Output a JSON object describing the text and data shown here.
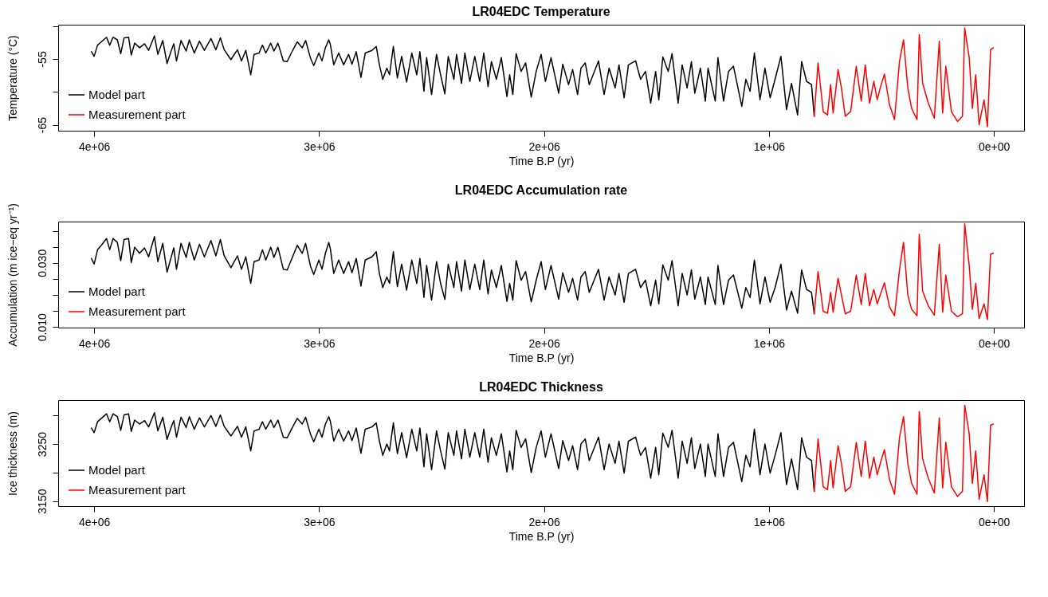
{
  "chart_data": [
    {
      "type": "line",
      "title": "LR04EDC Temperature",
      "xlabel": "Time B.P (yr)",
      "ylabel": "Temperature (°C)",
      "xlim": [
        4160000,
        -134000
      ],
      "xticks": [
        {
          "value": 4000000,
          "label": "4e+06"
        },
        {
          "value": 3000000,
          "label": "3e+06"
        },
        {
          "value": 2000000,
          "label": "2e+06"
        },
        {
          "value": 1000000,
          "label": "1e+06"
        },
        {
          "value": 0,
          "label": "0e+00"
        }
      ],
      "ylim": [
        -65.9,
        -49.8
      ],
      "yticks": [
        -65,
        {
          "value": -60,
          "label": null
        },
        -55,
        {
          "value": -50,
          "label": null
        }
      ],
      "legend": "bottom left",
      "series": [
        {
          "name": "Model part",
          "color": "#000000",
          "x": [
            4012000,
            4000000,
            3985000,
            3968000,
            3945000,
            3931000,
            3916000,
            3897000,
            3882000,
            3867000,
            3847000,
            3835000,
            3820000,
            3798000,
            3776000,
            3758000,
            3732000,
            3717000,
            3695000,
            3676000,
            3658000,
            3646000,
            3634000,
            3614000,
            3591000,
            3577000,
            3555000,
            3532000,
            3510000,
            3481000,
            3459000,
            3439000,
            3422000,
            3392000,
            3363000,
            3345000,
            3326000,
            3304000,
            3289000,
            3267000,
            3252000,
            3237000,
            3215000,
            3201000,
            3183000,
            3159000,
            3142000,
            3119000,
            3097000,
            3075000,
            3060000,
            3038000,
            3024000,
            3001000,
            2987000,
            2972000,
            2957000,
            2950000,
            2935000,
            2913000,
            2891000,
            2869000,
            2854000,
            2835000,
            2814000,
            2795000,
            2765000,
            2746000,
            2732000,
            2717000,
            2699000,
            2687000,
            2670000,
            2652000,
            2633000,
            2611000,
            2588000,
            2566000,
            2552000,
            2534000,
            2522000,
            2500000,
            2478000,
            2460000,
            2441000,
            2426000,
            2401000,
            2389000,
            2367000,
            2352000,
            2330000,
            2308000,
            2286000,
            2268000,
            2249000,
            2234000,
            2212000,
            2190000,
            2165000,
            2153000,
            2139000,
            2124000,
            2102000,
            2082000,
            2057000,
            2035000,
            2013000,
            1994000,
            1969000,
            1935000,
            1917000,
            1891000,
            1873000,
            1851000,
            1836000,
            1817000,
            1799000,
            1758000,
            1733000,
            1711000,
            1684000,
            1667000,
            1644000,
            1625000,
            1593000,
            1571000,
            1549000,
            1526000,
            1504000,
            1490000,
            1472000,
            1448000,
            1431000,
            1404000,
            1386000,
            1364000,
            1345000,
            1330000,
            1305000,
            1283000,
            1271000,
            1239000,
            1227000,
            1202000,
            1180000,
            1158000,
            1121000,
            1103000,
            1084000,
            1065000,
            1040000,
            1018000,
            995000,
            973000,
            947000,
            922000,
            900000,
            873000,
            855000,
            833000,
            811000,
            799000
          ],
          "values": [
            -53.9,
            -54.6,
            -52.9,
            -52.4,
            -51.7,
            -52.9,
            -51.7,
            -52.1,
            -54.2,
            -51.8,
            -51.7,
            -54.4,
            -52.6,
            -53.3,
            -52.7,
            -53.7,
            -51.5,
            -54.3,
            -52.2,
            -55.7,
            -53.8,
            -52.7,
            -55.3,
            -52.2,
            -53.8,
            -52.1,
            -54.1,
            -52.3,
            -53.7,
            -51.9,
            -53.6,
            -51.8,
            -53.6,
            -55.1,
            -53.6,
            -55.3,
            -53.7,
            -57.4,
            -54.3,
            -54.1,
            -52.9,
            -54.1,
            -52.6,
            -53.8,
            -52.6,
            -55.3,
            -55.4,
            -53.8,
            -52.4,
            -53.3,
            -52.2,
            -54.9,
            -56.0,
            -54.1,
            -55.3,
            -53.3,
            -52.1,
            -52.8,
            -55.9,
            -54.1,
            -55.9,
            -54.3,
            -55.8,
            -53.9,
            -57.8,
            -54.1,
            -53.7,
            -53.1,
            -55.9,
            -58.1,
            -56.4,
            -57.4,
            -53.1,
            -57.9,
            -54.6,
            -58.5,
            -54.1,
            -57.4,
            -53.9,
            -59.9,
            -54.8,
            -60.4,
            -54.3,
            -57.4,
            -60.3,
            -54.6,
            -58.1,
            -54.3,
            -58.7,
            -54.1,
            -58.4,
            -54.6,
            -58.4,
            -54.1,
            -59.2,
            -55.4,
            -58.1,
            -54.8,
            -60.7,
            -57.4,
            -60.4,
            -54.2,
            -56.9,
            -55.6,
            -60.8,
            -56.9,
            -54.3,
            -58.4,
            -54.8,
            -60.2,
            -55.8,
            -58.9,
            -56.6,
            -60.4,
            -56.4,
            -55.6,
            -58.9,
            -55.3,
            -60.4,
            -56.4,
            -59.4,
            -55.9,
            -60.9,
            -55.9,
            -55.3,
            -58.1,
            -56.9,
            -61.7,
            -56.9,
            -61.2,
            -54.7,
            -56.9,
            -54.2,
            -61.7,
            -55.9,
            -59.4,
            -55.4,
            -60.2,
            -56.4,
            -61.4,
            -56.4,
            -61.4,
            -54.8,
            -61.4,
            -56.9,
            -56.1,
            -62.2,
            -58.1,
            -59.9,
            -54.1,
            -61.2,
            -56.4,
            -60.9,
            -58.1,
            -54.6,
            -62.7,
            -58.7,
            -63.5,
            -55.4,
            -58.4,
            -58.9,
            -63.7
          ]
        },
        {
          "name": "Measurement part",
          "color": "#ff0000",
          "x": [
            799000,
            782000,
            759000,
            740000,
            726000,
            715000,
            693000,
            678000,
            661000,
            637000,
            612000,
            590000,
            572000,
            553000,
            534000,
            519000,
            504000,
            487000,
            464000,
            442000,
            420000,
            402000,
            383000,
            366000,
            342000,
            332000,
            317000,
            292000,
            265000,
            243000,
            228000,
            214000,
            189000,
            162000,
            140000,
            130000,
            110000,
            96000,
            81000,
            66000,
            44000,
            29000,
            15000,
            3000
          ],
          "values": [
            -63.7,
            -55.6,
            -63.0,
            -63.5,
            -58.9,
            -63.2,
            -56.6,
            -59.4,
            -63.7,
            -63.0,
            -56.1,
            -61.4,
            -55.9,
            -61.7,
            -58.4,
            -61.2,
            -59.2,
            -57.3,
            -62.0,
            -64.2,
            -55.4,
            -52.1,
            -59.4,
            -62.5,
            -64.2,
            -51.3,
            -58.7,
            -61.7,
            -64.0,
            -52.3,
            -63.2,
            -56.1,
            -63.0,
            -64.5,
            -63.7,
            -50.3,
            -54.8,
            -62.5,
            -57.4,
            -65.0,
            -61.2,
            -65.3,
            -53.6,
            -53.3
          ]
        }
      ]
    },
    {
      "type": "line",
      "title": "LR04EDC Accumulation rate",
      "xlabel": "Time B.P (yr)",
      "ylabel": "Accumulation (m ice−eq yr⁻¹)",
      "xlim": [
        4160000,
        -134000
      ],
      "xticks": [
        {
          "value": 4000000,
          "label": "4e+06"
        },
        {
          "value": 3000000,
          "label": "3e+06"
        },
        {
          "value": 2000000,
          "label": "2e+06"
        },
        {
          "value": 1000000,
          "label": "1e+06"
        },
        {
          "value": 0,
          "label": "0e+00"
        }
      ],
      "ylim": [
        0.0098,
        0.0429
      ],
      "yticks": [
        {
          "value": 0.01,
          "label": "0.010"
        },
        {
          "value": 0.015,
          "label": null
        },
        {
          "value": 0.02,
          "label": null
        },
        {
          "value": 0.025,
          "label": null
        },
        {
          "value": 0.03,
          "label": "0.030"
        },
        {
          "value": 0.035,
          "label": null
        },
        {
          "value": 0.04,
          "label": null
        }
      ],
      "legend": "bottom left",
      "series": [
        {
          "name": "Model part",
          "color": "#000000",
          "x": [
            4012000,
            4000000,
            3985000,
            3968000,
            3945000,
            3931000,
            3916000,
            3897000,
            3882000,
            3867000,
            3847000,
            3835000,
            3820000,
            3798000,
            3776000,
            3758000,
            3732000,
            3717000,
            3695000,
            3676000,
            3658000,
            3646000,
            3634000,
            3614000,
            3591000,
            3577000,
            3555000,
            3532000,
            3510000,
            3481000,
            3459000,
            3439000,
            3422000,
            3392000,
            3363000,
            3345000,
            3326000,
            3304000,
            3289000,
            3267000,
            3252000,
            3237000,
            3215000,
            3201000,
            3183000,
            3159000,
            3142000,
            3119000,
            3097000,
            3075000,
            3060000,
            3038000,
            3024000,
            3001000,
            2987000,
            2972000,
            2957000,
            2950000,
            2935000,
            2913000,
            2891000,
            2869000,
            2854000,
            2835000,
            2814000,
            2795000,
            2765000,
            2746000,
            2732000,
            2717000,
            2699000,
            2687000,
            2670000,
            2652000,
            2633000,
            2611000,
            2588000,
            2566000,
            2552000,
            2534000,
            2522000,
            2500000,
            2478000,
            2460000,
            2441000,
            2426000,
            2401000,
            2389000,
            2367000,
            2352000,
            2330000,
            2308000,
            2286000,
            2268000,
            2249000,
            2234000,
            2212000,
            2190000,
            2165000,
            2153000,
            2139000,
            2124000,
            2102000,
            2082000,
            2057000,
            2035000,
            2013000,
            1994000,
            1969000,
            1935000,
            1917000,
            1891000,
            1873000,
            1851000,
            1836000,
            1817000,
            1799000,
            1758000,
            1733000,
            1711000,
            1684000,
            1667000,
            1644000,
            1625000,
            1593000,
            1571000,
            1549000,
            1526000,
            1504000,
            1490000,
            1472000,
            1448000,
            1431000,
            1404000,
            1386000,
            1364000,
            1345000,
            1330000,
            1305000,
            1283000,
            1271000,
            1239000,
            1227000,
            1202000,
            1180000,
            1158000,
            1121000,
            1103000,
            1084000,
            1065000,
            1040000,
            1018000,
            995000,
            973000,
            947000,
            922000,
            900000,
            873000,
            855000,
            833000,
            811000,
            799000
          ],
          "values": [
            0.0314,
            0.0296,
            0.0341,
            0.0355,
            0.0376,
            0.0341,
            0.0376,
            0.0364,
            0.0307,
            0.0373,
            0.0376,
            0.0301,
            0.0349,
            0.033,
            0.0347,
            0.0319,
            0.0382,
            0.0304,
            0.0361,
            0.0271,
            0.0317,
            0.0347,
            0.028,
            0.0361,
            0.0317,
            0.0364,
            0.0309,
            0.0358,
            0.0319,
            0.037,
            0.0322,
            0.0373,
            0.0322,
            0.0285,
            0.0322,
            0.028,
            0.0319,
            0.0236,
            0.0304,
            0.0309,
            0.0341,
            0.0309,
            0.0349,
            0.0317,
            0.0349,
            0.028,
            0.0278,
            0.0317,
            0.0355,
            0.033,
            0.0361,
            0.0289,
            0.0264,
            0.0309,
            0.028,
            0.033,
            0.0364,
            0.0344,
            0.0267,
            0.0309,
            0.0267,
            0.0304,
            0.0269,
            0.0314,
            0.0228,
            0.0309,
            0.0319,
            0.0335,
            0.0267,
            0.0223,
            0.0256,
            0.0236,
            0.0335,
            0.0226,
            0.0296,
            0.0215,
            0.0309,
            0.0236,
            0.0314,
            0.0192,
            0.0292,
            0.0184,
            0.0304,
            0.0236,
            0.0186,
            0.0296,
            0.0223,
            0.0304,
            0.0212,
            0.0309,
            0.0217,
            0.0296,
            0.0217,
            0.0309,
            0.0203,
            0.0278,
            0.0223,
            0.0292,
            0.018,
            0.0236,
            0.0184,
            0.0307,
            0.0246,
            0.0273,
            0.0178,
            0.0246,
            0.0304,
            0.0217,
            0.0292,
            0.0187,
            0.0269,
            0.0208,
            0.0252,
            0.0184,
            0.0256,
            0.0273,
            0.0208,
            0.028,
            0.0184,
            0.0256,
            0.02,
            0.0267,
            0.0177,
            0.0267,
            0.028,
            0.0223,
            0.0246,
            0.0166,
            0.0246,
            0.0172,
            0.0294,
            0.0246,
            0.0307,
            0.0166,
            0.0267,
            0.02,
            0.0278,
            0.0187,
            0.0256,
            0.017,
            0.0256,
            0.017,
            0.0292,
            0.017,
            0.0246,
            0.0262,
            0.0159,
            0.0223,
            0.0192,
            0.0309,
            0.0172,
            0.0256,
            0.0177,
            0.0223,
            0.0296,
            0.0153,
            0.0212,
            0.0143,
            0.0278,
            0.0217,
            0.0208,
            0.0141
          ]
        },
        {
          "name": "Measurement part",
          "color": "#ff0000",
          "x": [
            799000,
            782000,
            759000,
            740000,
            726000,
            715000,
            693000,
            678000,
            661000,
            637000,
            612000,
            590000,
            572000,
            553000,
            534000,
            519000,
            504000,
            487000,
            464000,
            442000,
            420000,
            402000,
            383000,
            366000,
            342000,
            332000,
            317000,
            292000,
            265000,
            243000,
            228000,
            214000,
            189000,
            162000,
            140000,
            130000,
            110000,
            96000,
            81000,
            66000,
            44000,
            29000,
            15000,
            3000
          ],
          "values": [
            0.0141,
            0.0273,
            0.0149,
            0.0143,
            0.0208,
            0.0146,
            0.0252,
            0.02,
            0.0141,
            0.0149,
            0.0262,
            0.017,
            0.0267,
            0.0166,
            0.0217,
            0.0172,
            0.0203,
            0.0238,
            0.0162,
            0.0135,
            0.0278,
            0.0364,
            0.02,
            0.0155,
            0.0135,
            0.0389,
            0.0212,
            0.0166,
            0.0137,
            0.0358,
            0.0146,
            0.0262,
            0.0149,
            0.0132,
            0.0141,
            0.0422,
            0.0292,
            0.0155,
            0.0236,
            0.0126,
            0.0172,
            0.0123,
            0.0327,
            0.033
          ]
        }
      ]
    },
    {
      "type": "line",
      "title": "LR04EDC Thickness",
      "xlabel": "Time B.P (yr)",
      "ylabel": "Ice thickness (m)",
      "xlim": [
        4160000,
        -134000
      ],
      "xticks": [
        {
          "value": 4000000,
          "label": "4e+06"
        },
        {
          "value": 3000000,
          "label": "3e+06"
        },
        {
          "value": 2000000,
          "label": "2e+06"
        },
        {
          "value": 1000000,
          "label": "1e+06"
        },
        {
          "value": 0,
          "label": "0e+00"
        }
      ],
      "ylim": [
        3141,
        3327
      ],
      "yticks": [
        3150,
        {
          "value": 3200,
          "label": null
        },
        3250,
        {
          "value": 3300,
          "label": null
        }
      ],
      "legend": "bottom left",
      "series": [
        {
          "name": "Model part",
          "color": "#000000",
          "x": [
            4012000,
            4000000,
            3985000,
            3968000,
            3945000,
            3931000,
            3916000,
            3897000,
            3882000,
            3867000,
            3847000,
            3835000,
            3820000,
            3798000,
            3776000,
            3758000,
            3732000,
            3717000,
            3695000,
            3676000,
            3658000,
            3646000,
            3634000,
            3614000,
            3591000,
            3577000,
            3555000,
            3532000,
            3510000,
            3481000,
            3459000,
            3439000,
            3422000,
            3392000,
            3363000,
            3345000,
            3326000,
            3304000,
            3289000,
            3267000,
            3252000,
            3237000,
            3215000,
            3201000,
            3183000,
            3159000,
            3142000,
            3119000,
            3097000,
            3075000,
            3060000,
            3038000,
            3024000,
            3001000,
            2987000,
            2972000,
            2957000,
            2950000,
            2935000,
            2913000,
            2891000,
            2869000,
            2854000,
            2835000,
            2814000,
            2795000,
            2765000,
            2746000,
            2732000,
            2717000,
            2699000,
            2687000,
            2670000,
            2652000,
            2633000,
            2611000,
            2588000,
            2566000,
            2552000,
            2534000,
            2522000,
            2500000,
            2478000,
            2460000,
            2441000,
            2426000,
            2401000,
            2389000,
            2367000,
            2352000,
            2330000,
            2308000,
            2286000,
            2268000,
            2249000,
            2234000,
            2212000,
            2190000,
            2165000,
            2153000,
            2139000,
            2124000,
            2102000,
            2082000,
            2057000,
            2035000,
            2013000,
            1994000,
            1969000,
            1935000,
            1917000,
            1891000,
            1873000,
            1851000,
            1836000,
            1817000,
            1799000,
            1758000,
            1733000,
            1711000,
            1684000,
            1667000,
            1644000,
            1625000,
            1593000,
            1571000,
            1549000,
            1526000,
            1504000,
            1490000,
            1472000,
            1448000,
            1431000,
            1404000,
            1386000,
            1364000,
            1345000,
            1330000,
            1305000,
            1283000,
            1271000,
            1239000,
            1227000,
            1202000,
            1180000,
            1158000,
            1121000,
            1103000,
            1084000,
            1065000,
            1040000,
            1018000,
            995000,
            973000,
            947000,
            922000,
            900000,
            873000,
            855000,
            833000,
            811000,
            799000
          ],
          "values": [
            3278,
            3270,
            3289,
            3295,
            3303,
            3289,
            3303,
            3298,
            3274,
            3301,
            3303,
            3272,
            3292,
            3285,
            3291,
            3280,
            3305,
            3273,
            3297,
            3258,
            3279,
            3291,
            3262,
            3297,
            3279,
            3298,
            3276,
            3296,
            3280,
            3300,
            3281,
            3301,
            3281,
            3264,
            3281,
            3262,
            3280,
            3238,
            3273,
            3276,
            3289,
            3276,
            3292,
            3279,
            3292,
            3262,
            3261,
            3279,
            3295,
            3285,
            3297,
            3267,
            3254,
            3276,
            3262,
            3285,
            3298,
            3290,
            3255,
            3276,
            3255,
            3273,
            3256,
            3278,
            3234,
            3276,
            3280,
            3287,
            3255,
            3230,
            3250,
            3238,
            3287,
            3233,
            3270,
            3226,
            3276,
            3238,
            3278,
            3210,
            3268,
            3205,
            3273,
            3238,
            3206,
            3270,
            3230,
            3273,
            3224,
            3276,
            3227,
            3270,
            3227,
            3276,
            3218,
            3261,
            3230,
            3268,
            3201,
            3238,
            3205,
            3274,
            3244,
            3259,
            3200,
            3244,
            3273,
            3227,
            3268,
            3207,
            3256,
            3221,
            3247,
            3205,
            3250,
            3259,
            3221,
            3262,
            3205,
            3250,
            3216,
            3255,
            3199,
            3255,
            3262,
            3230,
            3244,
            3190,
            3244,
            3196,
            3269,
            3244,
            3274,
            3190,
            3255,
            3216,
            3261,
            3207,
            3250,
            3193,
            3250,
            3193,
            3268,
            3193,
            3244,
            3253,
            3184,
            3230,
            3210,
            3276,
            3196,
            3250,
            3199,
            3230,
            3270,
            3179,
            3224,
            3170,
            3261,
            3227,
            3221,
            3167
          ]
        },
        {
          "name": "Measurement part",
          "color": "#ff0000",
          "x": [
            799000,
            782000,
            759000,
            740000,
            726000,
            715000,
            693000,
            678000,
            661000,
            637000,
            612000,
            590000,
            572000,
            553000,
            534000,
            519000,
            504000,
            487000,
            464000,
            442000,
            420000,
            402000,
            383000,
            366000,
            342000,
            332000,
            317000,
            292000,
            265000,
            243000,
            228000,
            214000,
            189000,
            162000,
            140000,
            130000,
            110000,
            96000,
            81000,
            66000,
            44000,
            29000,
            15000,
            3000
          ],
          "values": [
            3167,
            3259,
            3175,
            3170,
            3221,
            3173,
            3247,
            3216,
            3167,
            3175,
            3253,
            3193,
            3255,
            3190,
            3227,
            3196,
            3218,
            3240,
            3187,
            3162,
            3261,
            3298,
            3216,
            3181,
            3162,
            3307,
            3224,
            3190,
            3164,
            3296,
            3173,
            3253,
            3175,
            3158,
            3167,
            3318,
            3268,
            3181,
            3238,
            3153,
            3196,
            3149,
            3283,
            3285
          ]
        }
      ]
    }
  ]
}
